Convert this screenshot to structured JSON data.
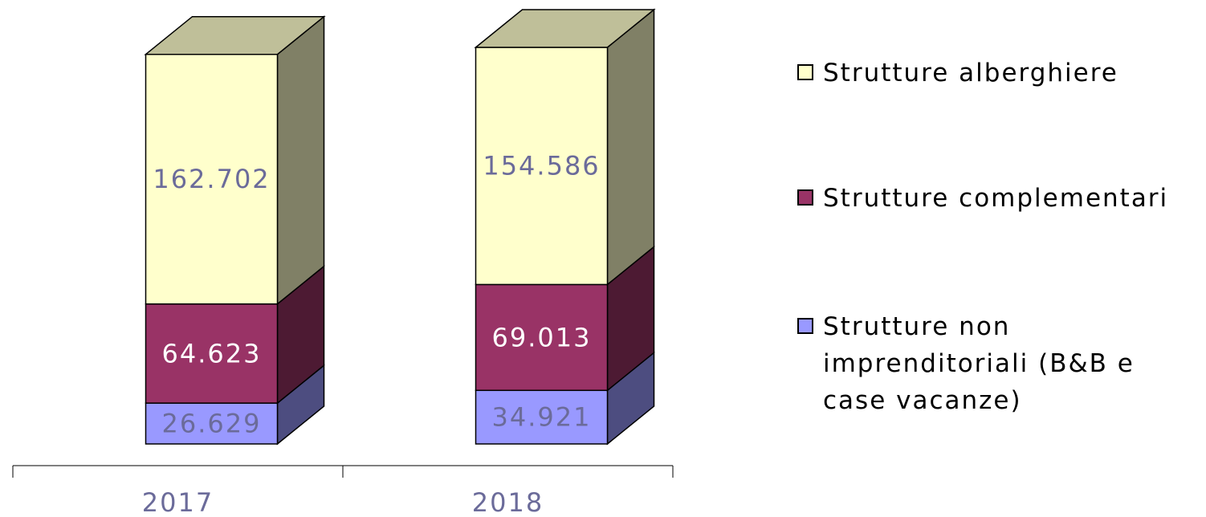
{
  "chart_data": {
    "type": "bar3d_stacked",
    "categories": [
      "2017",
      "2018"
    ],
    "series": [
      {
        "name": "Strutture alberghiere",
        "color": "#ffffcc",
        "values": [
          162702,
          154586
        ],
        "value_labels": [
          "162.702",
          "154.586"
        ]
      },
      {
        "name": "Strutture complementari",
        "color": "#993366",
        "values": [
          64623,
          69013
        ],
        "value_labels": [
          "64.623",
          "69.013"
        ]
      },
      {
        "name": "Strutture non imprenditoriali (B&B e case vacanze)",
        "color": "#9999ff",
        "values": [
          26629,
          34921
        ],
        "value_labels": [
          "26.629",
          "34.921"
        ]
      }
    ],
    "legend": "right"
  }
}
